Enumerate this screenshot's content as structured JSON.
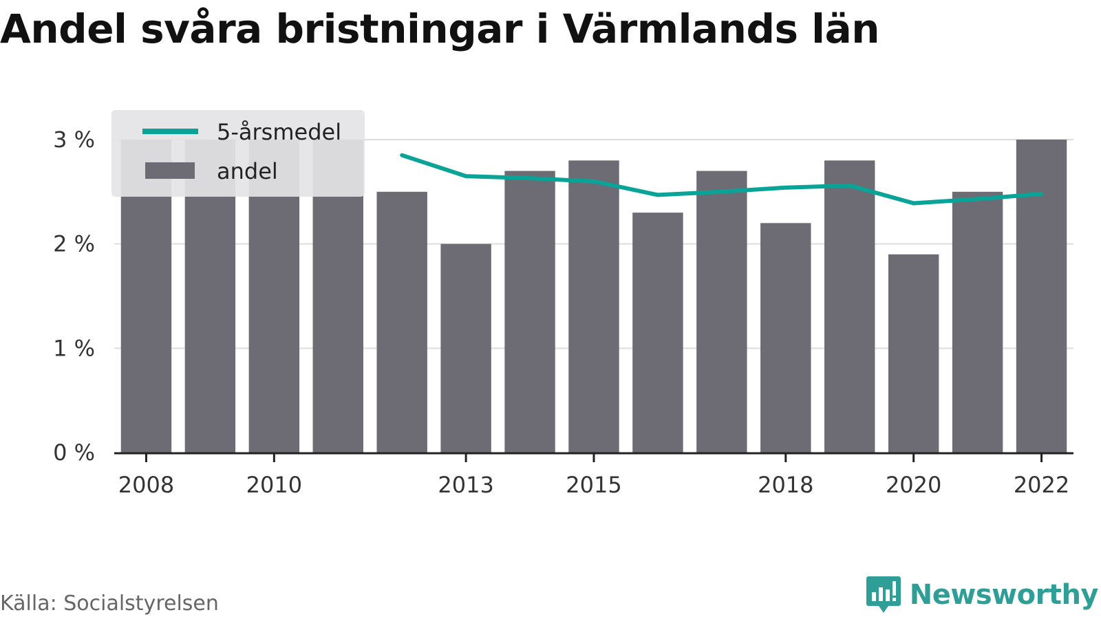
{
  "title": "Andel svåra bristningar i Värmlands län",
  "source": "Källa: Socialstyrelsen",
  "brand": {
    "name": "Newsworthy",
    "icon": "newsworthy-logo-icon",
    "color": "#2e9e96"
  },
  "colors": {
    "bar": "#6d6b73",
    "line": "#0aa398",
    "grid": "#dddddd",
    "axis": "#222222",
    "legend_bg": "#e4e4e6"
  },
  "chart_data": {
    "type": "bar",
    "categories": [
      "2008",
      "2009",
      "2010",
      "2011",
      "2012",
      "2013",
      "2014",
      "2015",
      "2016",
      "2017",
      "2018",
      "2019",
      "2020",
      "2021",
      "2022"
    ],
    "x_tick_labels": [
      "2008",
      "2010",
      "2013",
      "2015",
      "2018",
      "2020",
      "2022"
    ],
    "y_tick_labels": [
      "0 %",
      "1 %",
      "2 %",
      "3 %"
    ],
    "y_ticks": [
      0,
      1,
      2,
      3
    ],
    "ylim": [
      0,
      3
    ],
    "grid": true,
    "legend_position": "top-left",
    "series": [
      {
        "name": "andel",
        "type": "bar",
        "values": [
          3.0,
          3.0,
          3.0,
          3.0,
          2.5,
          2.0,
          2.7,
          2.8,
          2.3,
          2.7,
          2.2,
          2.8,
          1.9,
          2.5,
          3.0
        ]
      },
      {
        "name": "5-årsmedel",
        "type": "line",
        "values": [
          null,
          null,
          null,
          null,
          2.85,
          2.65,
          2.63,
          2.6,
          2.47,
          2.5,
          2.54,
          2.56,
          2.39,
          2.43,
          2.48
        ]
      }
    ]
  }
}
